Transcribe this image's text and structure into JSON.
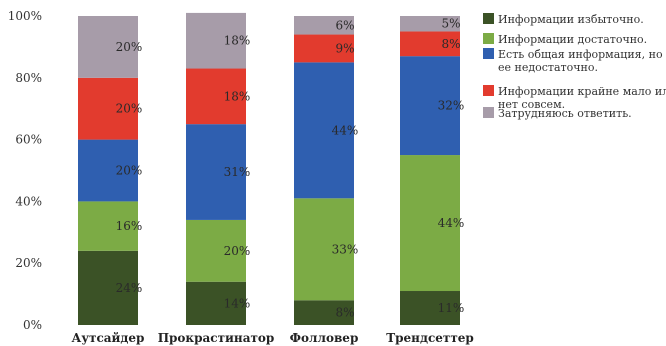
{
  "chart_data": {
    "type": "bar",
    "stacked": true,
    "normalized": true,
    "categories": [
      "Аутсайдер",
      "Прокрастинатор",
      "Фолловер",
      "Трендсеттер"
    ],
    "series": [
      {
        "name": "Информации избыточно.",
        "color": "#3b5226",
        "values": [
          24,
          14,
          8,
          11
        ],
        "labels": [
          "24%",
          "14%",
          "8%",
          "11%"
        ]
      },
      {
        "name": "Информации достаточно.",
        "color": "#7cab45",
        "values": [
          16,
          20,
          33,
          44
        ],
        "labels": [
          "16%",
          "20%",
          "33%",
          "44%"
        ]
      },
      {
        "name": "Есть общая информация, но ее недостаточно.",
        "legend_lines": [
          "Есть общая информация, но",
          "ее недостаточно."
        ],
        "color": "#2f5fb0",
        "values": [
          20,
          31,
          44,
          32
        ],
        "labels": [
          "20%",
          "31%",
          "44%",
          "32%"
        ]
      },
      {
        "name": "Информации крайне мало или нет совсем.",
        "legend_lines": [
          "Информации крайне мало или",
          "нет совсем."
        ],
        "color": "#e23b2e",
        "values": [
          20,
          18,
          9,
          8
        ],
        "labels": [
          "20%",
          "18%",
          "9%",
          "8%"
        ]
      },
      {
        "name": "Затрудняюсь ответить.",
        "color": "#a79ca9",
        "values": [
          20,
          18,
          6,
          5
        ],
        "labels": [
          "20%",
          "18%",
          "6%",
          "5%"
        ]
      }
    ],
    "yticks": [
      "0%",
      "20%",
      "40%",
      "60%",
      "80%",
      "100%"
    ],
    "ylim": [
      0,
      100
    ],
    "grid": false,
    "legend": "right"
  }
}
